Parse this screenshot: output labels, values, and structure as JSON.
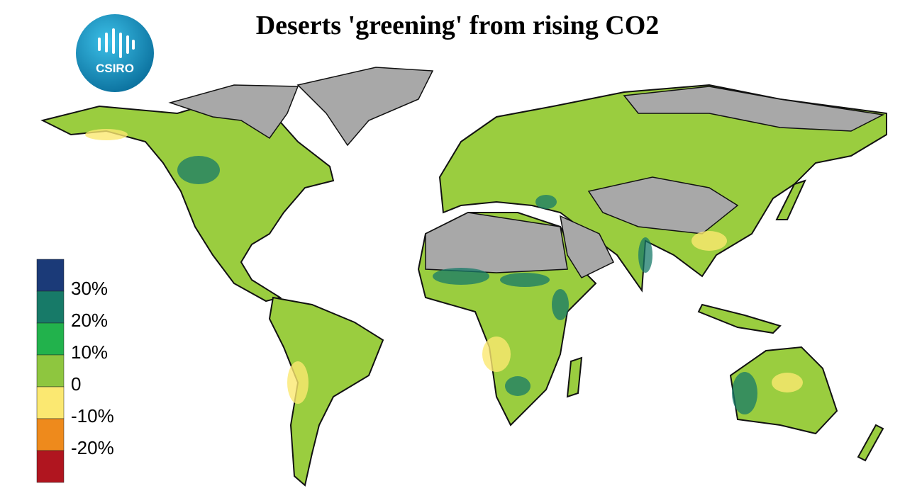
{
  "title": "Deserts 'greening' from rising CO2",
  "logo": "CSIRO",
  "legend": {
    "colors": [
      "#1b3a78",
      "#177a68",
      "#22b24c",
      "#8ec63f",
      "#fbe871",
      "#ee8a1c",
      "#b0151f"
    ],
    "labels": [
      "30%",
      "20%",
      "10%",
      "0",
      "-10%",
      "-20%"
    ]
  }
}
